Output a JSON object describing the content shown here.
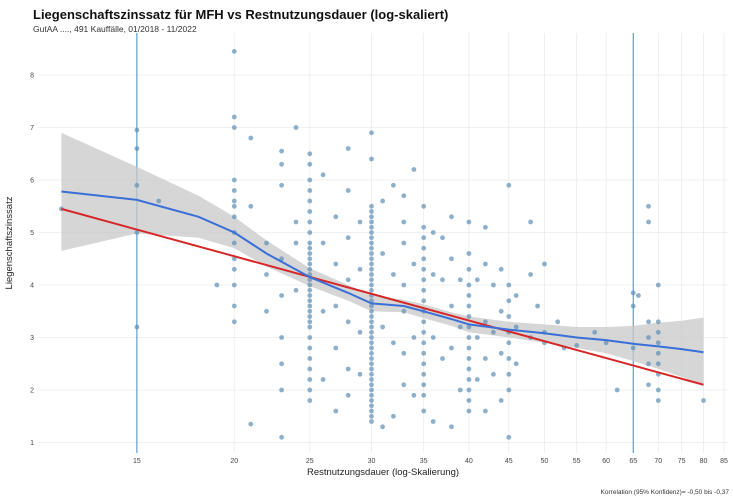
{
  "title": "Liegenschaftszinssatz für MFH vs Restnutzungsdauer (log-skaliert)",
  "subtitle": "GutAA ...., 491 Kauffälle, 01/2018 - 11/2022",
  "footnote": "Korrelation (95% Konfidenz)= -0,50 bis -0,37",
  "colors": {
    "points": "#5f8fb4",
    "smooth_line": "#3a6fd8",
    "regression_line": "#d62728",
    "confidence_band": "#c8c8c8",
    "vertical_markers": "#3a8fc4",
    "grid": "#ebebeb"
  },
  "chart_data": {
    "type": "scatter",
    "xlabel": "Restnutzungsdauer (log-Skalierung)",
    "ylabel": "Liegenschaftszinssatz",
    "x_scale": "log",
    "xlim": [
      11.2,
      86
    ],
    "ylim": [
      0.8,
      8.8
    ],
    "x_ticks": [
      15,
      20,
      25,
      30,
      35,
      40,
      45,
      50,
      55,
      60,
      65,
      70,
      75,
      80,
      85
    ],
    "y_ticks": [
      1,
      2,
      3,
      4,
      5,
      6,
      7,
      8
    ],
    "grid": true,
    "vertical_markers_x": [
      15,
      65
    ],
    "regression": {
      "x": [
        12,
        80
      ],
      "y": [
        5.45,
        2.1
      ]
    },
    "smooth": {
      "x": [
        12,
        15,
        18,
        20,
        22,
        25,
        28,
        30,
        33,
        35,
        38,
        40,
        45,
        50,
        55,
        60,
        65,
        70,
        75,
        80
      ],
      "y": [
        5.78,
        5.62,
        5.3,
        5.0,
        4.6,
        4.15,
        3.85,
        3.65,
        3.6,
        3.5,
        3.35,
        3.25,
        3.15,
        3.08,
        3.0,
        2.95,
        2.88,
        2.83,
        2.78,
        2.72
      ],
      "band_upper": [
        6.9,
        6.25,
        5.7,
        5.3,
        4.85,
        4.32,
        4.0,
        3.8,
        3.72,
        3.63,
        3.48,
        3.4,
        3.3,
        3.25,
        3.2,
        3.2,
        3.22,
        3.28,
        3.32,
        3.38
      ],
      "band_lower": [
        4.65,
        4.98,
        4.9,
        4.7,
        4.35,
        3.98,
        3.7,
        3.5,
        3.48,
        3.37,
        3.22,
        3.1,
        3.0,
        2.9,
        2.8,
        2.7,
        2.55,
        2.4,
        2.25,
        2.08
      ]
    },
    "points": [
      [
        12,
        5.45
      ],
      [
        15,
        6.95
      ],
      [
        15,
        6.6
      ],
      [
        15,
        5.9
      ],
      [
        15,
        5.0
      ],
      [
        15,
        3.2
      ],
      [
        16,
        5.6
      ],
      [
        19,
        4.0
      ],
      [
        20,
        8.45
      ],
      [
        20,
        7.2
      ],
      [
        20,
        7.0
      ],
      [
        20,
        6.0
      ],
      [
        20,
        5.8
      ],
      [
        20,
        5.6
      ],
      [
        20,
        5.5
      ],
      [
        20,
        5.3
      ],
      [
        20,
        5.0
      ],
      [
        20,
        4.8
      ],
      [
        20,
        4.5
      ],
      [
        20,
        4.3
      ],
      [
        20,
        4.0
      ],
      [
        20,
        3.6
      ],
      [
        20,
        3.3
      ],
      [
        21,
        6.8
      ],
      [
        21,
        5.5
      ],
      [
        21,
        1.35
      ],
      [
        22,
        4.8
      ],
      [
        22,
        4.2
      ],
      [
        22,
        3.5
      ],
      [
        23,
        6.55
      ],
      [
        23,
        6.3
      ],
      [
        23,
        5.9
      ],
      [
        23,
        4.5
      ],
      [
        23,
        3.8
      ],
      [
        23,
        3.0
      ],
      [
        23,
        2.5
      ],
      [
        23,
        2.0
      ],
      [
        23,
        1.1
      ],
      [
        24,
        7.0
      ],
      [
        24,
        5.2
      ],
      [
        24,
        4.8
      ],
      [
        24,
        3.9
      ],
      [
        25,
        6.5
      ],
      [
        25,
        6.3
      ],
      [
        25,
        6.0
      ],
      [
        25,
        5.8
      ],
      [
        25,
        5.6
      ],
      [
        25,
        5.4
      ],
      [
        25,
        5.2
      ],
      [
        25,
        5.0
      ],
      [
        25,
        4.8
      ],
      [
        25,
        4.7
      ],
      [
        25,
        4.6
      ],
      [
        25,
        4.5
      ],
      [
        25,
        4.4
      ],
      [
        25,
        4.3
      ],
      [
        25,
        4.2
      ],
      [
        25,
        4.1
      ],
      [
        25,
        4.0
      ],
      [
        25,
        3.9
      ],
      [
        25,
        3.8
      ],
      [
        25,
        3.7
      ],
      [
        25,
        3.6
      ],
      [
        25,
        3.5
      ],
      [
        25,
        3.4
      ],
      [
        25,
        3.3
      ],
      [
        25,
        3.2
      ],
      [
        25,
        3.0
      ],
      [
        25,
        2.8
      ],
      [
        25,
        2.6
      ],
      [
        25,
        2.4
      ],
      [
        25,
        2.2
      ],
      [
        25,
        2.0
      ],
      [
        25,
        1.8
      ],
      [
        26,
        6.1
      ],
      [
        26,
        4.8
      ],
      [
        26,
        3.5
      ],
      [
        26,
        2.2
      ],
      [
        27,
        5.3
      ],
      [
        27,
        4.4
      ],
      [
        27,
        3.6
      ],
      [
        27,
        2.8
      ],
      [
        27,
        1.6
      ],
      [
        28,
        6.6
      ],
      [
        28,
        5.8
      ],
      [
        28,
        4.9
      ],
      [
        28,
        4.1
      ],
      [
        28,
        3.3
      ],
      [
        28,
        2.4
      ],
      [
        28,
        1.9
      ],
      [
        29,
        5.2
      ],
      [
        29,
        4.3
      ],
      [
        29,
        3.1
      ],
      [
        29,
        2.3
      ],
      [
        30,
        6.9
      ],
      [
        30,
        6.4
      ],
      [
        30,
        5.5
      ],
      [
        30,
        5.4
      ],
      [
        30,
        5.3
      ],
      [
        30,
        5.2
      ],
      [
        30,
        5.1
      ],
      [
        30,
        5.0
      ],
      [
        30,
        4.9
      ],
      [
        30,
        4.8
      ],
      [
        30,
        4.7
      ],
      [
        30,
        4.6
      ],
      [
        30,
        4.5
      ],
      [
        30,
        4.4
      ],
      [
        30,
        4.3
      ],
      [
        30,
        4.2
      ],
      [
        30,
        4.1
      ],
      [
        30,
        4.0
      ],
      [
        30,
        3.9
      ],
      [
        30,
        3.8
      ],
      [
        30,
        3.7
      ],
      [
        30,
        3.6
      ],
      [
        30,
        3.5
      ],
      [
        30,
        3.4
      ],
      [
        30,
        3.3
      ],
      [
        30,
        3.2
      ],
      [
        30,
        3.1
      ],
      [
        30,
        3.0
      ],
      [
        30,
        2.9
      ],
      [
        30,
        2.8
      ],
      [
        30,
        2.7
      ],
      [
        30,
        2.6
      ],
      [
        30,
        2.5
      ],
      [
        30,
        2.4
      ],
      [
        30,
        2.3
      ],
      [
        30,
        2.2
      ],
      [
        30,
        2.1
      ],
      [
        30,
        2.0
      ],
      [
        30,
        1.9
      ],
      [
        30,
        1.8
      ],
      [
        30,
        1.7
      ],
      [
        30,
        1.6
      ],
      [
        30,
        1.5
      ],
      [
        30,
        1.4
      ],
      [
        31,
        5.6
      ],
      [
        31,
        4.6
      ],
      [
        31,
        3.2
      ],
      [
        31,
        1.3
      ],
      [
        32,
        5.9
      ],
      [
        32,
        4.2
      ],
      [
        32,
        2.9
      ],
      [
        32,
        1.5
      ],
      [
        33,
        5.7
      ],
      [
        33,
        5.2
      ],
      [
        33,
        4.8
      ],
      [
        33,
        4.0
      ],
      [
        33,
        3.5
      ],
      [
        33,
        2.7
      ],
      [
        33,
        2.1
      ],
      [
        34,
        6.2
      ],
      [
        34,
        4.4
      ],
      [
        34,
        3.0
      ],
      [
        34,
        1.9
      ],
      [
        35,
        5.5
      ],
      [
        35,
        5.1
      ],
      [
        35,
        4.9
      ],
      [
        35,
        4.7
      ],
      [
        35,
        4.5
      ],
      [
        35,
        4.3
      ],
      [
        35,
        4.1
      ],
      [
        35,
        3.9
      ],
      [
        35,
        3.7
      ],
      [
        35,
        3.5
      ],
      [
        35,
        3.3
      ],
      [
        35,
        3.1
      ],
      [
        35,
        2.9
      ],
      [
        35,
        2.7
      ],
      [
        35,
        2.5
      ],
      [
        35,
        2.3
      ],
      [
        35,
        2.1
      ],
      [
        35,
        1.9
      ],
      [
        35,
        1.6
      ],
      [
        36,
        5.0
      ],
      [
        36,
        4.2
      ],
      [
        36,
        3.0
      ],
      [
        36,
        1.4
      ],
      [
        37,
        4.9
      ],
      [
        37,
        4.1
      ],
      [
        37,
        2.6
      ],
      [
        38,
        5.3
      ],
      [
        38,
        4.5
      ],
      [
        38,
        3.6
      ],
      [
        38,
        2.8
      ],
      [
        38,
        1.3
      ],
      [
        39,
        4.1
      ],
      [
        39,
        3.2
      ],
      [
        39,
        2.0
      ],
      [
        40,
        5.2
      ],
      [
        40,
        4.6
      ],
      [
        40,
        4.3
      ],
      [
        40,
        4.0
      ],
      [
        40,
        3.8
      ],
      [
        40,
        3.6
      ],
      [
        40,
        3.4
      ],
      [
        40,
        3.2
      ],
      [
        40,
        3.0
      ],
      [
        40,
        2.8
      ],
      [
        40,
        2.6
      ],
      [
        40,
        2.4
      ],
      [
        40,
        2.2
      ],
      [
        40,
        2.0
      ],
      [
        40,
        1.8
      ],
      [
        40,
        1.6
      ],
      [
        41,
        4.1
      ],
      [
        41,
        3.0
      ],
      [
        41,
        2.2
      ],
      [
        42,
        5.1
      ],
      [
        42,
        4.4
      ],
      [
        42,
        3.3
      ],
      [
        42,
        2.6
      ],
      [
        42,
        1.6
      ],
      [
        43,
        4.0
      ],
      [
        43,
        3.1
      ],
      [
        43,
        2.3
      ],
      [
        44,
        4.3
      ],
      [
        44,
        3.5
      ],
      [
        44,
        2.7
      ],
      [
        44,
        1.8
      ],
      [
        45,
        5.9
      ],
      [
        45,
        4.0
      ],
      [
        45,
        3.7
      ],
      [
        45,
        3.4
      ],
      [
        45,
        3.1
      ],
      [
        45,
        2.9
      ],
      [
        45,
        2.6
      ],
      [
        45,
        2.3
      ],
      [
        45,
        2.0
      ],
      [
        45,
        1.1
      ],
      [
        46,
        3.8
      ],
      [
        46,
        3.2
      ],
      [
        46,
        2.5
      ],
      [
        48,
        5.2
      ],
      [
        48,
        4.2
      ],
      [
        48,
        3.0
      ],
      [
        49,
        3.6
      ],
      [
        50,
        4.4
      ],
      [
        50,
        3.1
      ],
      [
        50,
        2.9
      ],
      [
        52,
        3.3
      ],
      [
        53,
        2.8
      ],
      [
        55,
        2.85
      ],
      [
        58,
        3.1
      ],
      [
        60,
        2.9
      ],
      [
        62,
        2.0
      ],
      [
        65,
        3.85
      ],
      [
        65,
        3.6
      ],
      [
        65,
        2.8
      ],
      [
        66,
        3.8
      ],
      [
        68,
        5.5
      ],
      [
        68,
        5.2
      ],
      [
        68,
        3.3
      ],
      [
        68,
        3.0
      ],
      [
        68,
        2.5
      ],
      [
        68,
        2.1
      ],
      [
        70,
        4.0
      ],
      [
        70,
        3.3
      ],
      [
        70,
        3.1
      ],
      [
        70,
        2.9
      ],
      [
        70,
        2.7
      ],
      [
        70,
        2.5
      ],
      [
        70,
        2.3
      ],
      [
        70,
        2.0
      ],
      [
        70,
        1.8
      ],
      [
        80,
        1.8
      ]
    ]
  }
}
